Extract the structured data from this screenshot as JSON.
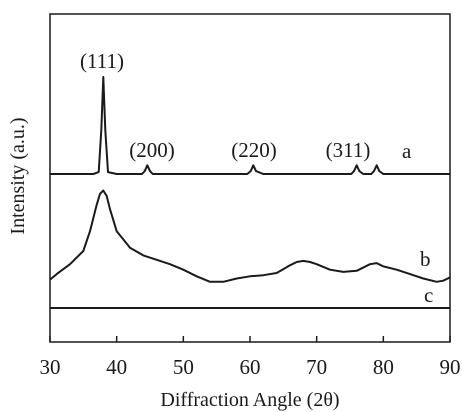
{
  "chart_data": {
    "type": "line",
    "title": "",
    "xlabel": "Diffraction Angle (2θ)",
    "ylabel": "Intensity (a.u.)",
    "xlim": [
      30,
      90
    ],
    "x_ticks": [
      30,
      40,
      50,
      60,
      70,
      80,
      90
    ],
    "y_ticks": [],
    "grid": false,
    "series": [
      {
        "name": "a",
        "x": [
          30,
          36.5,
          37.3,
          37.7,
          38.0,
          38.3,
          38.7,
          40,
          43.8,
          44.2,
          44.6,
          45.0,
          45.4,
          47,
          59.6,
          60.1,
          60.5,
          60.9,
          62,
          75.2,
          75.6,
          76.0,
          76.4,
          77,
          78.2,
          78.6,
          79.0,
          79.4,
          80,
          90
        ],
        "y": [
          0,
          0,
          0.02,
          0.45,
          1.0,
          0.45,
          0.02,
          0,
          0,
          0.03,
          0.09,
          0.03,
          0,
          0,
          0,
          0.03,
          0.09,
          0.03,
          0,
          0,
          0.03,
          0.09,
          0.03,
          0,
          0,
          0.03,
          0.09,
          0.03,
          0,
          0
        ]
      },
      {
        "name": "b",
        "x": [
          30,
          31,
          33,
          35,
          36,
          37,
          37.5,
          38,
          38.5,
          39,
          40,
          42,
          44,
          46,
          48,
          50,
          52,
          54,
          56,
          58,
          60,
          62,
          64,
          66,
          67,
          68,
          69,
          70,
          72,
          74,
          76,
          78,
          79,
          80,
          82,
          84,
          86,
          88,
          89,
          90
        ],
        "y": [
          0.04,
          0.09,
          0.18,
          0.3,
          0.48,
          0.72,
          0.82,
          0.85,
          0.8,
          0.68,
          0.48,
          0.33,
          0.26,
          0.22,
          0.18,
          0.13,
          0.07,
          0.02,
          0.02,
          0.05,
          0.07,
          0.08,
          0.1,
          0.17,
          0.2,
          0.21,
          0.2,
          0.18,
          0.13,
          0.11,
          0.12,
          0.18,
          0.19,
          0.16,
          0.13,
          0.09,
          0.05,
          0.02,
          0.03,
          0.06
        ]
      },
      {
        "name": "c",
        "x": [
          30,
          90
        ],
        "y": [
          0,
          0
        ]
      }
    ],
    "annotations": [
      {
        "text": "(111)",
        "x": 38
      },
      {
        "text": "(200)",
        "x": 44.6
      },
      {
        "text": "(220)",
        "x": 60.5
      },
      {
        "text": "(311)",
        "x": 76
      }
    ],
    "series_labels": [
      "a",
      "b",
      "c"
    ]
  }
}
